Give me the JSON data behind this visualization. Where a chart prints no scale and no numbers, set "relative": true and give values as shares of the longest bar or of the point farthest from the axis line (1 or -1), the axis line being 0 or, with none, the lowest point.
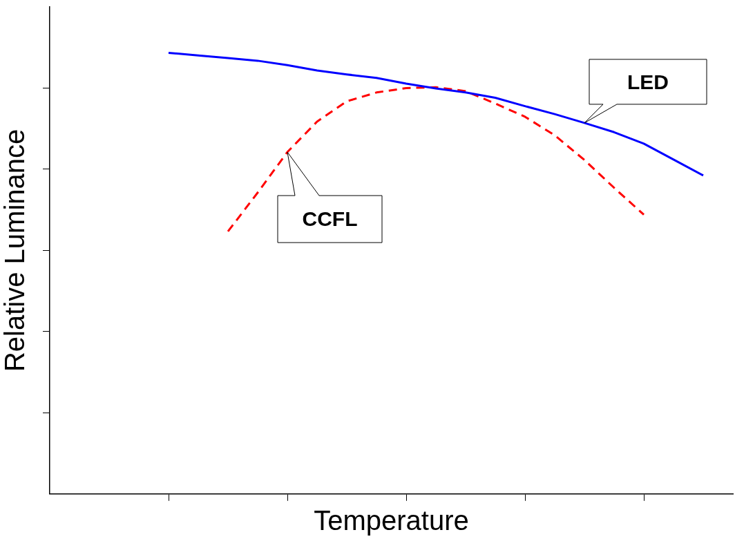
{
  "chart_data": {
    "type": "line",
    "relative": true,
    "xlabel": "Temperature",
    "ylabel": "Relative Luminance",
    "grid": false,
    "legend": false,
    "marker": "none",
    "categories": [
      null,
      null,
      null,
      null,
      null,
      null,
      null,
      null,
      null,
      null,
      null,
      null,
      null,
      null,
      null,
      null,
      null,
      null,
      null,
      null,
      null,
      null,
      null,
      null
    ],
    "series": [
      {
        "name": "LED",
        "color": "#0000ff",
        "line_style": "solid",
        "values": [
          null,
          null,
          null,
          null,
          1,
          0.994,
          0.988,
          0.982,
          0.972,
          0.96,
          0.951,
          0.943,
          0.93,
          0.919,
          0.91,
          0.898,
          0.879,
          0.861,
          0.841,
          0.82,
          0.794,
          0.758,
          0.722,
          null
        ]
      },
      {
        "name": "CCFL",
        "color": "#ff0000",
        "line_style": "dashed",
        "values": [
          null,
          null,
          null,
          null,
          null,
          null,
          0.595,
          0.683,
          0.775,
          0.844,
          0.89,
          0.91,
          0.92,
          0.922,
          0.913,
          0.885,
          0.855,
          0.813,
          0.757,
          0.694,
          0.633,
          null,
          null,
          null
        ]
      }
    ]
  }
}
